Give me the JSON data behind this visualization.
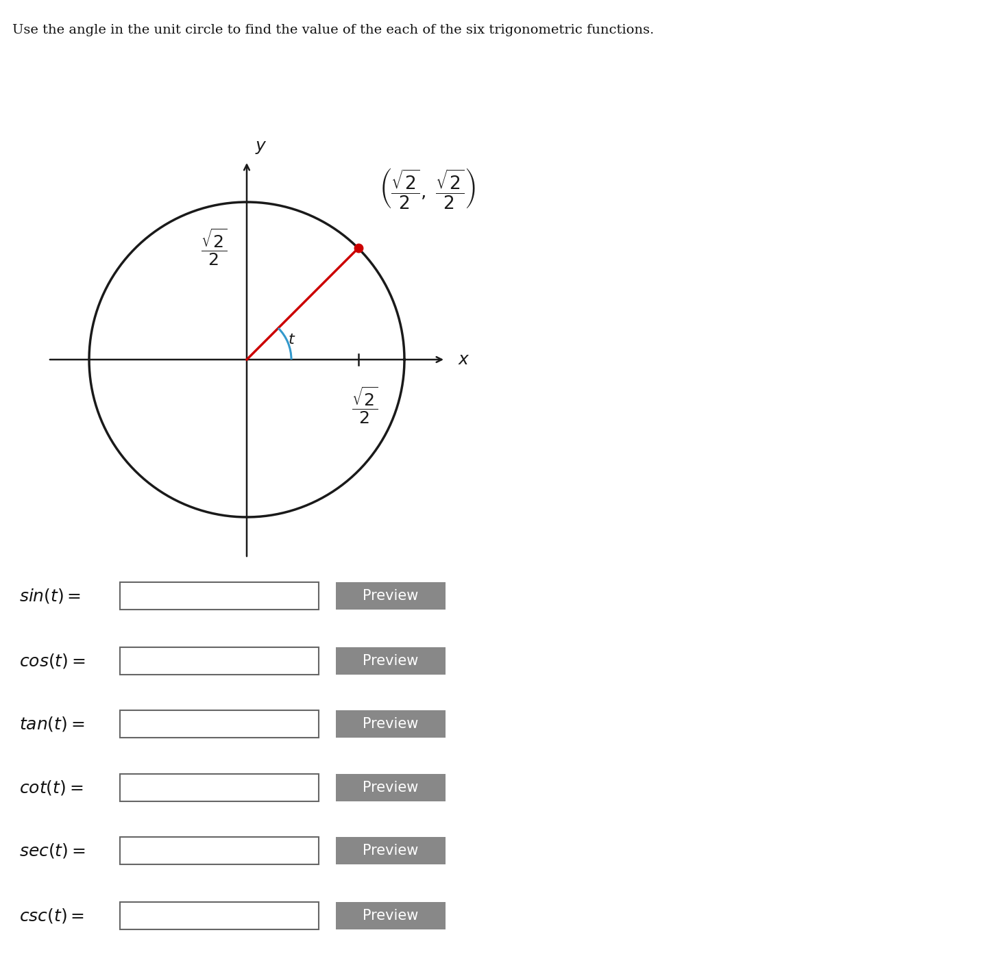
{
  "title": "Use the angle in the unit circle to find the value of the each of the six trigonometric functions.",
  "title_fontsize": 14,
  "circle_color": "#1a1a1a",
  "axis_color": "#1a1a1a",
  "radius_line_color": "#cc0000",
  "arc_color": "#3399cc",
  "point_color": "#cc0000",
  "preview_button_color": "#888888",
  "preview_text_color": "#ffffff",
  "background_color": "#ffffff",
  "functions": [
    "sin",
    "cos",
    "tan",
    "cot",
    "sec",
    "csc"
  ]
}
